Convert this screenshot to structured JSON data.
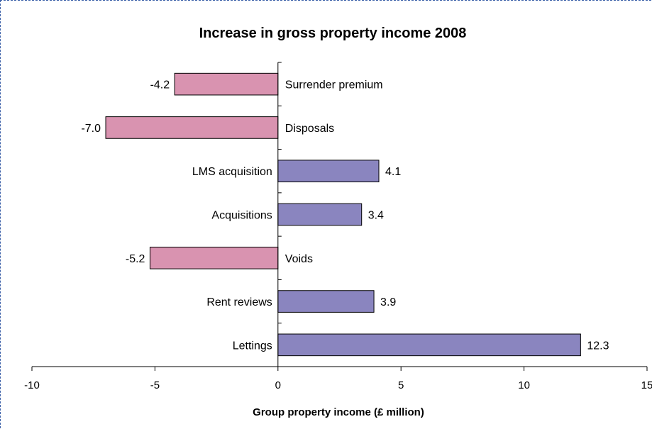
{
  "chart_data": {
    "type": "bar",
    "orientation": "horizontal",
    "title": "Increase in gross property income 2008",
    "xlabel": "Group property income (£ million)",
    "ylabel": "",
    "xlim": [
      -10,
      15
    ],
    "xticks": [
      -10,
      -5,
      0,
      5,
      10,
      15
    ],
    "xtick_labels": [
      "-10",
      "-5",
      "0",
      "5",
      "10",
      "15"
    ],
    "grid": false,
    "categories": [
      "Surrender premium",
      "Disposals",
      "LMS acquisition",
      "Acquisitions",
      "Voids",
      "Rent reviews",
      "Lettings"
    ],
    "values": [
      -4.2,
      -7.0,
      4.1,
      3.4,
      -5.2,
      3.9,
      12.3
    ],
    "value_labels": [
      "-4.2",
      "-7.0",
      "4.1",
      "3.4",
      "-5.2",
      "3.9",
      "12.3"
    ],
    "colors": {
      "positive": "#8a85bf",
      "negative": "#d993b0",
      "border": "#000000"
    }
  }
}
